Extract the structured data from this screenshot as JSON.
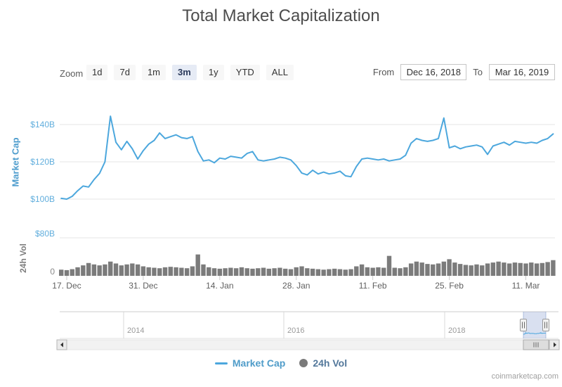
{
  "title": "Total Market Capitalization",
  "watermark": "coinmarketcap.com",
  "range_selector": {
    "zoom_label": "Zoom",
    "buttons": [
      {
        "label": "1d",
        "selected": false
      },
      {
        "label": "7d",
        "selected": false
      },
      {
        "label": "1m",
        "selected": false
      },
      {
        "label": "3m",
        "selected": true
      },
      {
        "label": "1y",
        "selected": false
      },
      {
        "label": "YTD",
        "selected": false
      },
      {
        "label": "ALL",
        "selected": false
      }
    ],
    "from_label": "From",
    "from_value": "Dec 16, 2018",
    "to_label": "To",
    "to_value": "Mar 16, 2019"
  },
  "price_axis": {
    "title": "Market Cap",
    "ticks": [
      {
        "label": "$100B",
        "value": 100
      },
      {
        "label": "$120B",
        "value": 120
      },
      {
        "label": "$140B",
        "value": 140
      }
    ]
  },
  "volume_axis": {
    "title": "24h Vol",
    "ticks": [
      {
        "label": "0",
        "value": 0,
        "muted": true
      },
      {
        "label": "$80B",
        "value": 80,
        "muted": false
      }
    ]
  },
  "x_axis": {
    "ticks": [
      {
        "label": "17. Dec",
        "day": 1
      },
      {
        "label": "31. Dec",
        "day": 15
      },
      {
        "label": "14. Jan",
        "day": 29
      },
      {
        "label": "28. Jan",
        "day": 43
      },
      {
        "label": "11. Feb",
        "day": 57
      },
      {
        "label": "25. Feb",
        "day": 71
      },
      {
        "label": "11. Mar",
        "day": 85
      }
    ]
  },
  "navigator": {
    "years": [
      "2014",
      "2016",
      "2018"
    ]
  },
  "legend": [
    {
      "label": "Market Cap",
      "symbol": "line",
      "symbol_color": "#4ca7dd",
      "text_color": "#4f9cc9"
    },
    {
      "label": "24h Vol",
      "symbol": "dot",
      "symbol_color": "#7a7a7a",
      "text_color": "#53789b"
    }
  ],
  "colors": {
    "line": "#4ca7dd",
    "volume_bar": "#7b7b7b",
    "grid": "#e6e6e6",
    "axis_tick_blue": "#61aedd",
    "nav_mask": "rgba(102,133,194,0.25)",
    "nav_mask_edge": "rgba(102,133,194,0.45)",
    "nav_grid": "#d8d8d8",
    "nav_border": "#cccccc",
    "scroll_track": "#f2f2f2",
    "scroll_thumb": "#dddddd",
    "scroll_button": "#ebebeb",
    "scroll_border": "#b5b5b5",
    "tick_mark": "#cccccc"
  },
  "chart_data": {
    "type": "line",
    "title": "Total Market Capitalization",
    "x_start": "2018-12-16",
    "x_end": "2019-03-16",
    "interval": "1 day",
    "unit": "USD billions",
    "price_ylim": [
      94,
      148
    ],
    "volume_ylim": [
      0,
      80
    ],
    "legend_position": "bottom-center",
    "grid": "horizontal",
    "series": [
      {
        "name": "Market Cap",
        "type": "line",
        "values": [
          100.4,
          100,
          101.5,
          104.5,
          107,
          106.5,
          110.5,
          113.8,
          120,
          144.5,
          130.5,
          126.5,
          131,
          127,
          121.5,
          126,
          129.5,
          131.5,
          135.5,
          132.5,
          133.5,
          134.5,
          133,
          132.5,
          133.5,
          125.5,
          120.5,
          121,
          119.5,
          122,
          121.5,
          123,
          122.5,
          122,
          124.5,
          125.5,
          121,
          120.5,
          121,
          121.5,
          122.5,
          122,
          121,
          118,
          114,
          113,
          115.5,
          113.5,
          114.5,
          113.5,
          114,
          115,
          112.5,
          112,
          117.5,
          121.5,
          122,
          121.5,
          121,
          121.5,
          120.5,
          121,
          121.5,
          123.5,
          130,
          132.5,
          131.5,
          131,
          131.5,
          132.5,
          143.5,
          127.5,
          128.5,
          127,
          128,
          128.5,
          129,
          128,
          124,
          128.5,
          129.5,
          130.5,
          129,
          131,
          130.5,
          130,
          130.5,
          130,
          131.5,
          132.5,
          135
        ]
      },
      {
        "name": "24h Vol",
        "type": "column",
        "values": [
          13,
          12,
          14,
          18,
          22,
          27,
          24,
          22,
          24,
          30,
          26,
          22,
          24,
          26,
          24,
          20,
          18,
          17,
          16,
          18,
          19,
          18,
          17,
          16,
          20,
          45,
          24,
          18,
          16,
          15,
          16,
          17,
          16,
          18,
          16,
          15,
          16,
          17,
          15,
          16,
          17,
          15,
          14,
          18,
          20,
          16,
          15,
          14,
          13,
          14,
          15,
          14,
          13,
          14,
          20,
          24,
          18,
          17,
          18,
          17,
          42,
          17,
          16,
          18,
          26,
          30,
          28,
          25,
          24,
          26,
          30,
          35,
          28,
          25,
          23,
          22,
          24,
          22,
          26,
          28,
          30,
          28,
          26,
          28,
          27,
          26,
          28,
          26,
          27,
          29,
          33
        ]
      }
    ]
  }
}
